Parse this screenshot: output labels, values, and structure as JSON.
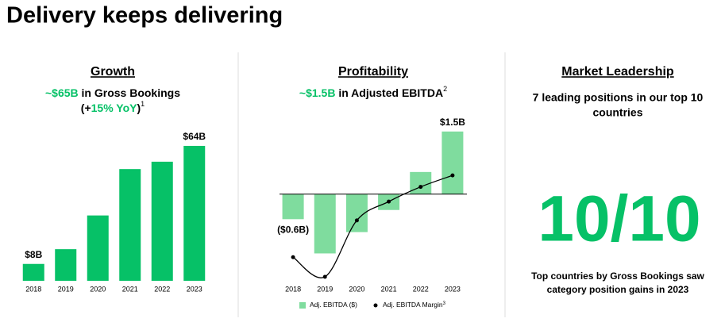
{
  "title": "Delivery keeps delivering",
  "highlight_color": "#06c167",
  "chart_data": [
    {
      "type": "bar",
      "title": "Growth",
      "subtitle_lines": [
        [
          {
            "text": "~$65B",
            "highlight": true
          },
          {
            "text": " in Gross Bookings"
          }
        ],
        [
          {
            "text": "(+"
          },
          {
            "text": "15% YoY",
            "highlight": true
          },
          {
            "text": ")"
          },
          {
            "text": "1",
            "sup": true
          }
        ]
      ],
      "categories": [
        "2018",
        "2019",
        "2020",
        "2021",
        "2022",
        "2023"
      ],
      "series": [
        {
          "name": "Gross Bookings",
          "color": "#06c167",
          "values": [
            8,
            15,
            31,
            53,
            56.5,
            64
          ],
          "value_labels": [
            "$8B",
            null,
            null,
            null,
            null,
            "$64B"
          ]
        }
      ],
      "ylim": [
        0,
        70
      ],
      "legend": false
    },
    {
      "type": "bar_line",
      "title": "Profitability",
      "subtitle_lines": [
        [
          {
            "text": "~$1.5B",
            "highlight": true
          },
          {
            "text": " in Adjusted EBITDA"
          },
          {
            "text": "2",
            "sup": true
          }
        ]
      ],
      "categories": [
        "2018",
        "2019",
        "2020",
        "2021",
        "2022",
        "2023"
      ],
      "series": [
        {
          "name": "Adj. EBITDA ($)",
          "color": "#7fdc9e",
          "type": "bar",
          "values": [
            -0.6,
            -1.42,
            -0.91,
            -0.38,
            0.53,
            1.5
          ],
          "value_labels": [
            "($0.6B)",
            null,
            null,
            null,
            null,
            "$1.5B"
          ]
        },
        {
          "name": "Adj. EBITDA Margin",
          "footnote": "3",
          "color": "#000000",
          "type": "line",
          "axis": "y2",
          "values": [
            -7.7,
            -10.1,
            -3.2,
            -0.9,
            0.9,
            2.3
          ]
        }
      ],
      "ylim": [
        -2,
        1.8
      ],
      "y2lim": [
        -10.2,
        9.2
      ],
      "zero_line": true,
      "legend": true
    }
  ],
  "market_leadership": {
    "heading": "Market Leadership",
    "lines": [
      "7 leading positions in our top 10",
      "countries"
    ],
    "big_number": "10/10",
    "caption_lines": [
      "Top countries by Gross Bookings saw",
      "category position gains in 2023"
    ]
  }
}
